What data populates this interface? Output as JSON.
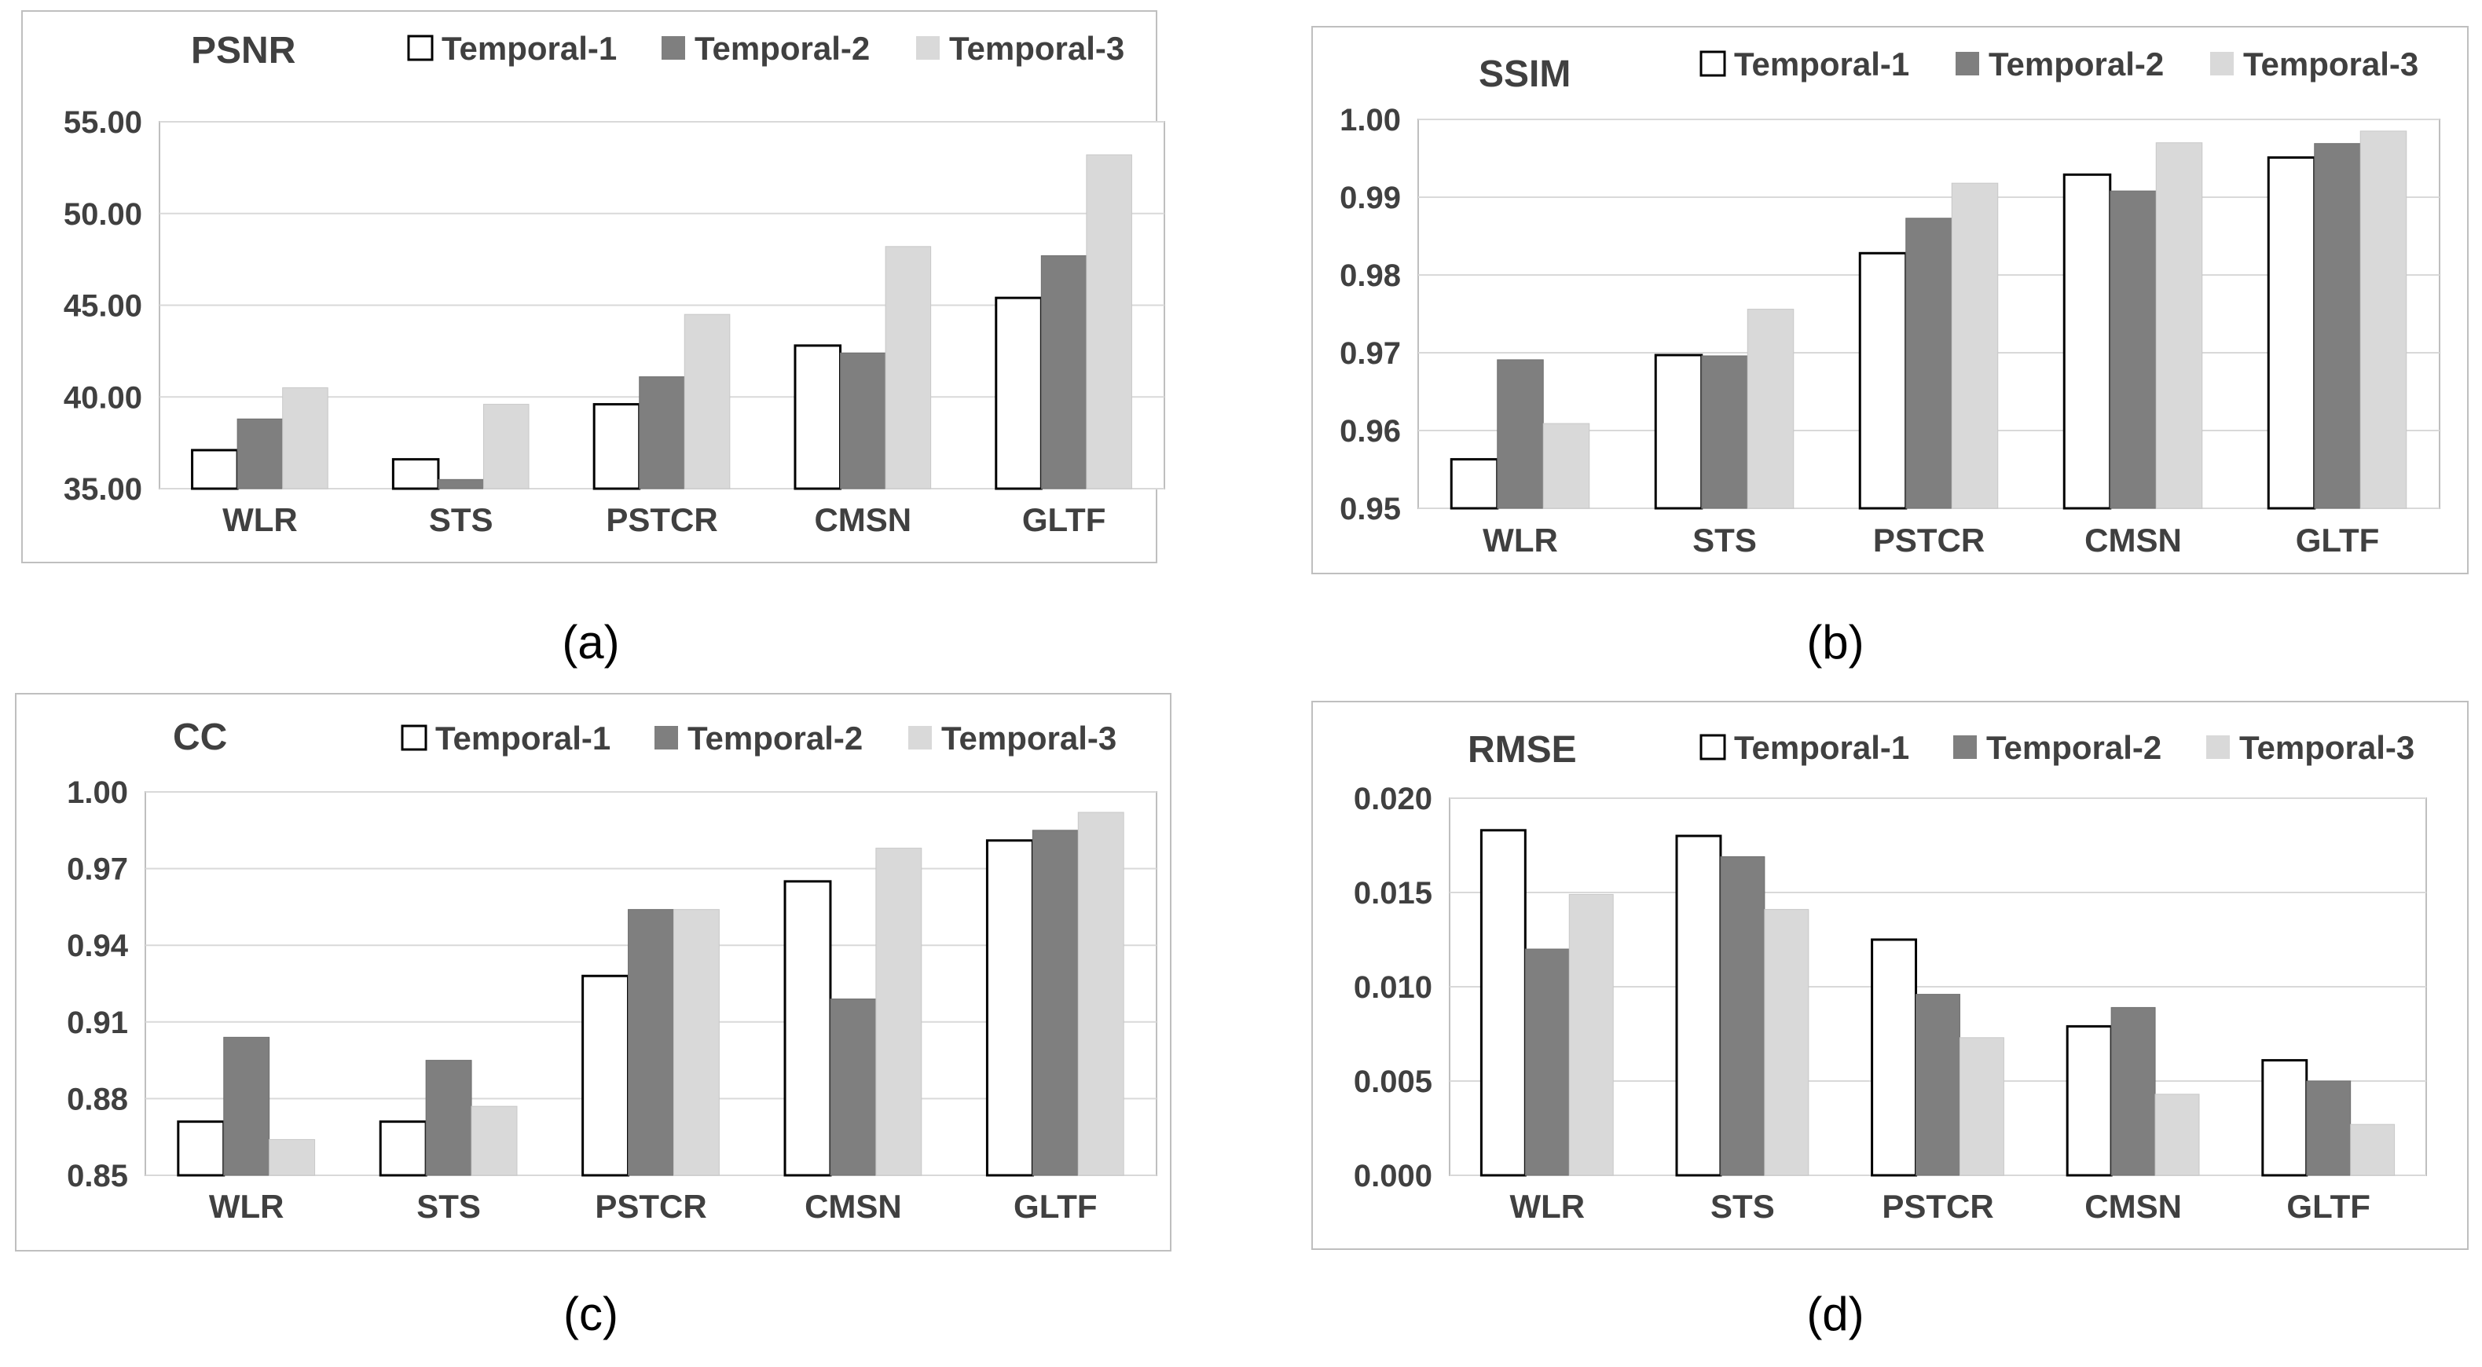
{
  "colors": {
    "temporal1": "#ffffff",
    "temporal2": "#7f7f7f",
    "temporal3": "#d9d9d9",
    "border": "#bfbfbf",
    "grid": "#d9d9d9",
    "text": "#404040"
  },
  "chart_data": [
    {
      "panel_label": "(a)",
      "type": "bar",
      "title": "PSNR",
      "categories": [
        "WLR",
        "STS",
        "PSTCR",
        "CMSN",
        "GLTF"
      ],
      "ylim": [
        35,
        55
      ],
      "ticks": [
        "35.00",
        "40.00",
        "45.00",
        "50.00",
        "55.00"
      ],
      "tick_values": [
        35,
        40,
        45,
        50,
        55
      ],
      "grid": true,
      "legend": "top-right",
      "series": [
        {
          "name": "Temporal-1",
          "values": [
            37.1,
            36.6,
            39.6,
            42.8,
            45.4
          ]
        },
        {
          "name": "Temporal-2",
          "values": [
            38.8,
            35.5,
            41.1,
            42.4,
            47.7
          ]
        },
        {
          "name": "Temporal-3",
          "values": [
            40.5,
            39.6,
            44.5,
            48.2,
            53.2
          ]
        }
      ]
    },
    {
      "panel_label": "(b)",
      "type": "bar",
      "title": "SSIM",
      "categories": [
        "WLR",
        "STS",
        "PSTCR",
        "CMSN",
        "GLTF"
      ],
      "ylim": [
        0.95,
        1.0
      ],
      "ticks": [
        "0.95",
        "0.96",
        "0.97",
        "0.98",
        "0.99",
        "1.00"
      ],
      "tick_values": [
        0.95,
        0.96,
        0.97,
        0.98,
        0.99,
        1.0
      ],
      "grid": true,
      "legend": "top-right",
      "series": [
        {
          "name": "Temporal-1",
          "values": [
            0.9563,
            0.9697,
            0.9828,
            0.9929,
            0.9951
          ]
        },
        {
          "name": "Temporal-2",
          "values": [
            0.9691,
            0.9696,
            0.9873,
            0.9908,
            0.9969
          ]
        },
        {
          "name": "Temporal-3",
          "values": [
            0.9609,
            0.9756,
            0.9918,
            0.997,
            0.9985
          ]
        }
      ]
    },
    {
      "panel_label": "(c)",
      "type": "bar",
      "title": "CC",
      "categories": [
        "WLR",
        "STS",
        "PSTCR",
        "CMSN",
        "GLTF"
      ],
      "ylim": [
        0.85,
        1.0
      ],
      "ticks": [
        "0.85",
        "0.88",
        "0.91",
        "0.94",
        "0.97",
        "1.00"
      ],
      "tick_values": [
        0.85,
        0.88,
        0.91,
        0.94,
        0.97,
        1.0
      ],
      "grid": true,
      "legend": "top-right",
      "series": [
        {
          "name": "Temporal-1",
          "values": [
            0.871,
            0.871,
            0.928,
            0.965,
            0.981
          ]
        },
        {
          "name": "Temporal-2",
          "values": [
            0.904,
            0.895,
            0.954,
            0.919,
            0.985
          ]
        },
        {
          "name": "Temporal-3",
          "values": [
            0.864,
            0.877,
            0.954,
            0.978,
            0.992
          ]
        }
      ]
    },
    {
      "panel_label": "(d)",
      "type": "bar",
      "title": "RMSE",
      "categories": [
        "WLR",
        "STS",
        "PSTCR",
        "CMSN",
        "GLTF"
      ],
      "ylim": [
        0.0,
        0.02
      ],
      "ticks": [
        "0.000",
        "0.005",
        "0.010",
        "0.015",
        "0.020"
      ],
      "tick_values": [
        0.0,
        0.005,
        0.01,
        0.015,
        0.02
      ],
      "grid": true,
      "legend": "top-right",
      "series": [
        {
          "name": "Temporal-1",
          "values": [
            0.0183,
            0.018,
            0.0125,
            0.0079,
            0.0061
          ]
        },
        {
          "name": "Temporal-2",
          "values": [
            0.012,
            0.0169,
            0.0096,
            0.0089,
            0.005
          ]
        },
        {
          "name": "Temporal-3",
          "values": [
            0.0149,
            0.0141,
            0.0073,
            0.0043,
            0.0027
          ]
        }
      ]
    }
  ]
}
